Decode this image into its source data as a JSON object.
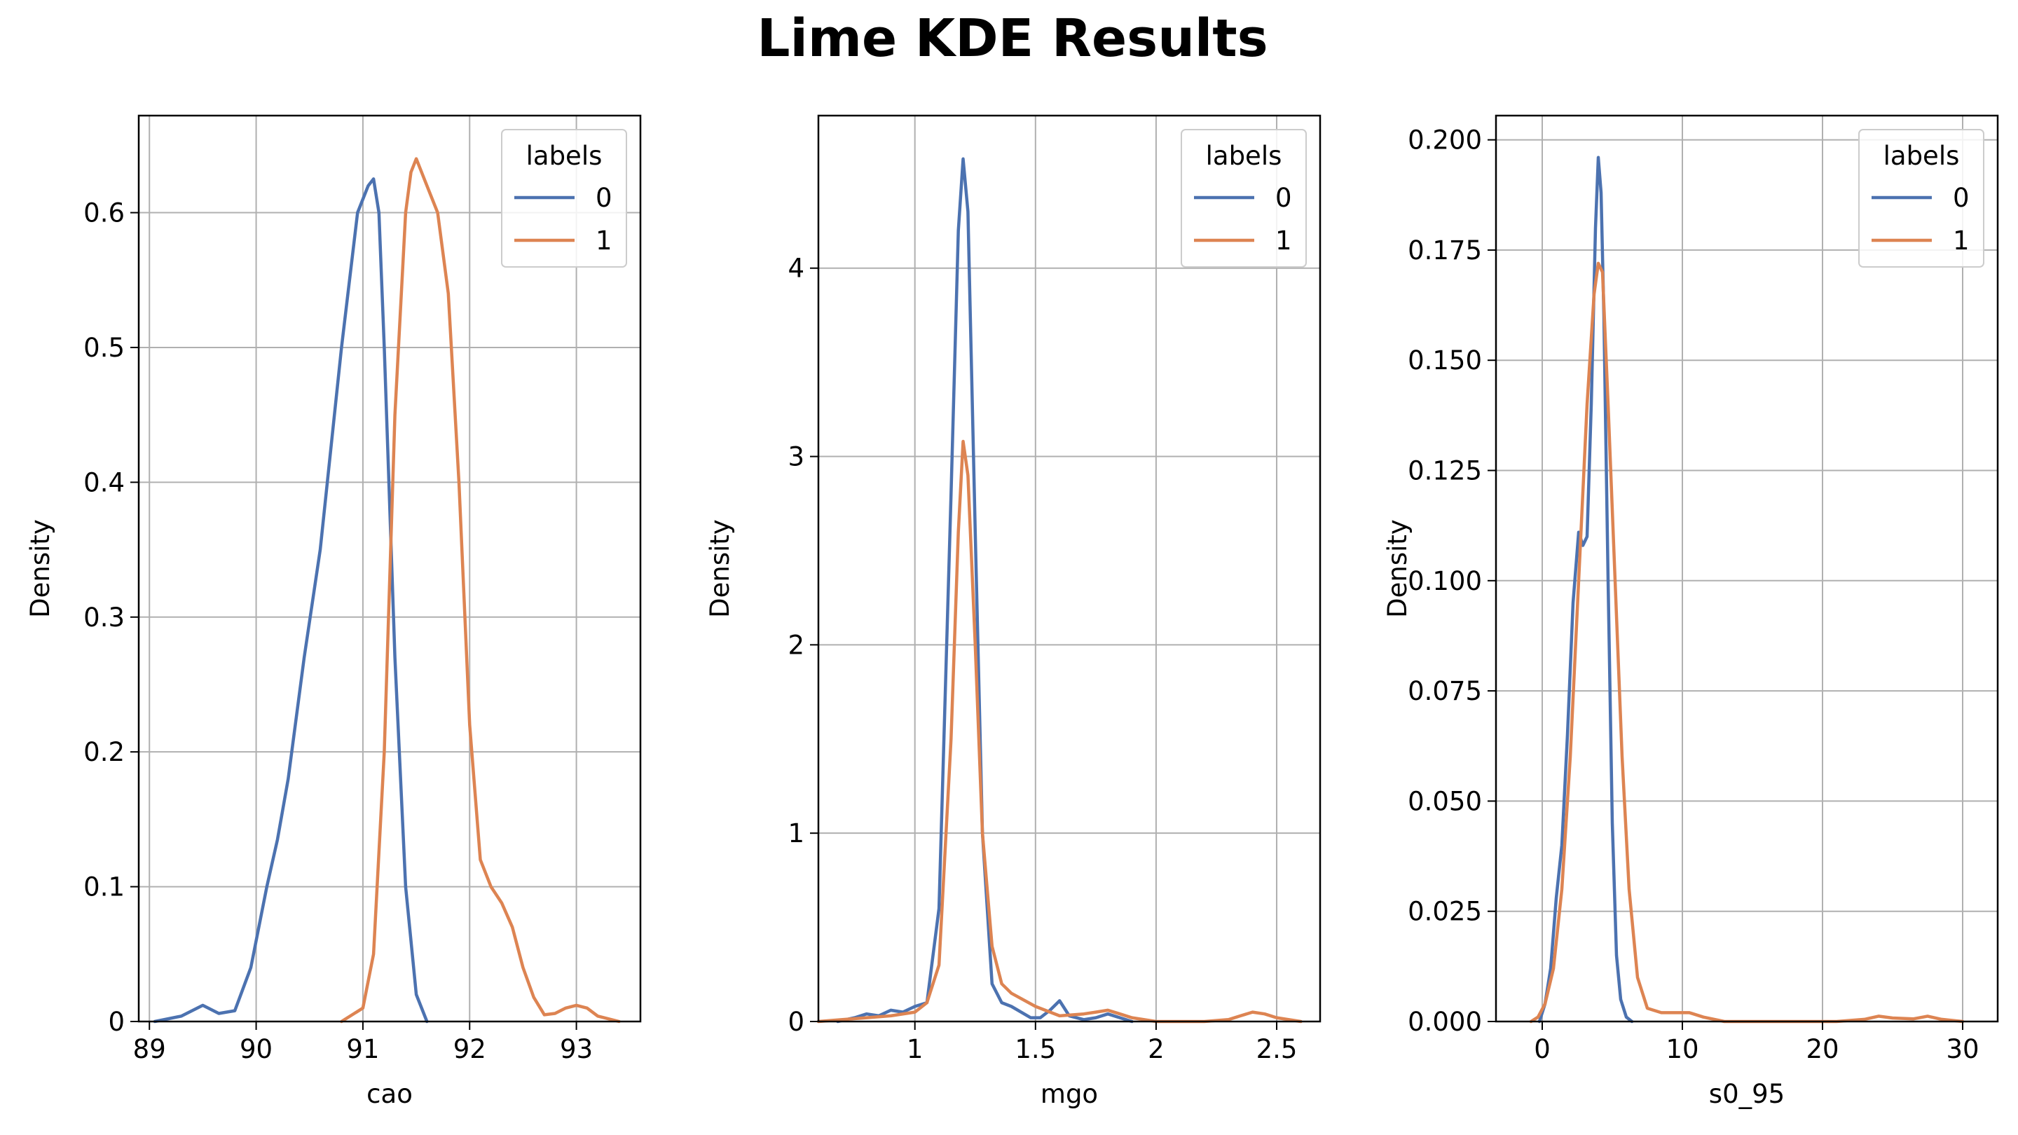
{
  "title": "Lime KDE Results",
  "colors": {
    "series_0": "#4c72b0",
    "series_1": "#dd8452",
    "grid": "#b0b0b0"
  },
  "chart_data": [
    {
      "type": "line",
      "xlabel": "cao",
      "ylabel": "Density",
      "xlim": [
        88.9,
        93.6
      ],
      "ylim": [
        0,
        0.672
      ],
      "xticks": [
        89,
        90,
        91,
        92,
        93
      ],
      "yticks": [
        0.0,
        0.1,
        0.2,
        0.3,
        0.4,
        0.5,
        0.6
      ],
      "grid": true,
      "legend": {
        "title": "labels",
        "placement": "top-right",
        "entries": [
          "0",
          "1"
        ]
      },
      "series": [
        {
          "name": "0",
          "x": [
            89.05,
            89.3,
            89.5,
            89.65,
            89.8,
            89.95,
            90.1,
            90.2,
            90.3,
            90.45,
            90.6,
            90.8,
            90.95,
            91.05,
            91.1,
            91.15,
            91.2,
            91.3,
            91.4,
            91.5,
            91.6
          ],
          "y": [
            0.0,
            0.004,
            0.012,
            0.006,
            0.008,
            0.04,
            0.1,
            0.135,
            0.18,
            0.27,
            0.35,
            0.5,
            0.6,
            0.62,
            0.625,
            0.6,
            0.5,
            0.27,
            0.1,
            0.02,
            0.0
          ]
        },
        {
          "name": "1",
          "x": [
            90.8,
            91.0,
            91.1,
            91.2,
            91.3,
            91.4,
            91.45,
            91.5,
            91.6,
            91.7,
            91.8,
            91.9,
            92.0,
            92.1,
            92.2,
            92.3,
            92.4,
            92.5,
            92.6,
            92.7,
            92.8,
            92.9,
            93.0,
            93.1,
            93.2,
            93.4
          ],
          "y": [
            0.0,
            0.01,
            0.05,
            0.2,
            0.45,
            0.6,
            0.63,
            0.64,
            0.62,
            0.6,
            0.54,
            0.4,
            0.22,
            0.12,
            0.1,
            0.088,
            0.07,
            0.04,
            0.018,
            0.005,
            0.006,
            0.01,
            0.012,
            0.01,
            0.004,
            0.0
          ]
        }
      ]
    },
    {
      "type": "line",
      "xlabel": "mgo",
      "ylabel": "Density",
      "xlim": [
        0.6,
        2.68
      ],
      "ylim": [
        0,
        4.81
      ],
      "xticks": [
        1.0,
        1.5,
        2.0,
        2.5
      ],
      "yticks": [
        0,
        1,
        2,
        3,
        4
      ],
      "grid": true,
      "legend": {
        "title": "labels",
        "placement": "top-right",
        "entries": [
          "0",
          "1"
        ]
      },
      "series": [
        {
          "name": "0",
          "x": [
            0.68,
            0.75,
            0.8,
            0.85,
            0.9,
            0.95,
            1.0,
            1.05,
            1.1,
            1.15,
            1.18,
            1.2,
            1.22,
            1.25,
            1.28,
            1.32,
            1.36,
            1.4,
            1.44,
            1.48,
            1.52,
            1.56,
            1.6,
            1.64,
            1.7,
            1.75,
            1.8,
            1.85,
            1.9
          ],
          "y": [
            0.0,
            0.02,
            0.04,
            0.03,
            0.06,
            0.05,
            0.08,
            0.1,
            0.6,
            2.8,
            4.2,
            4.58,
            4.3,
            2.6,
            1.0,
            0.2,
            0.1,
            0.08,
            0.05,
            0.02,
            0.02,
            0.06,
            0.11,
            0.03,
            0.01,
            0.02,
            0.04,
            0.02,
            0.0
          ]
        },
        {
          "name": "1",
          "x": [
            0.6,
            0.7,
            0.8,
            0.9,
            1.0,
            1.05,
            1.1,
            1.15,
            1.18,
            1.2,
            1.22,
            1.25,
            1.28,
            1.32,
            1.36,
            1.4,
            1.5,
            1.6,
            1.7,
            1.75,
            1.8,
            1.85,
            1.9,
            2.0,
            2.1,
            2.2,
            2.3,
            2.35,
            2.4,
            2.45,
            2.5,
            2.6
          ],
          "y": [
            0.0,
            0.01,
            0.02,
            0.03,
            0.05,
            0.1,
            0.3,
            1.5,
            2.6,
            3.08,
            2.9,
            2.0,
            1.0,
            0.4,
            0.2,
            0.15,
            0.08,
            0.03,
            0.04,
            0.05,
            0.06,
            0.04,
            0.02,
            0.0,
            0.0,
            0.0,
            0.01,
            0.03,
            0.05,
            0.04,
            0.02,
            0.0
          ]
        }
      ]
    },
    {
      "type": "line",
      "xlabel": "s0_95",
      "ylabel": "Density",
      "xlim": [
        -3.3,
        32.5
      ],
      "ylim": [
        0,
        0.2055
      ],
      "xticks": [
        0,
        10,
        20,
        30
      ],
      "yticks": [
        "0.000",
        "0.025",
        "0.050",
        "0.075",
        "0.100",
        "0.125",
        "0.150",
        "0.175",
        "0.200"
      ],
      "grid": true,
      "legend": {
        "title": "labels",
        "placement": "top-right",
        "entries": [
          "0",
          "1"
        ]
      },
      "series": [
        {
          "name": "0",
          "x": [
            -0.2,
            0.2,
            0.6,
            1.0,
            1.4,
            1.8,
            2.2,
            2.6,
            2.9,
            3.2,
            3.5,
            3.8,
            4.0,
            4.2,
            4.4,
            4.7,
            5.0,
            5.3,
            5.6,
            6.0,
            6.4
          ],
          "y": [
            0.0,
            0.004,
            0.012,
            0.028,
            0.04,
            0.065,
            0.095,
            0.111,
            0.108,
            0.11,
            0.14,
            0.18,
            0.196,
            0.188,
            0.16,
            0.1,
            0.045,
            0.015,
            0.005,
            0.001,
            0.0
          ]
        },
        {
          "name": "1",
          "x": [
            -0.8,
            -0.3,
            0.2,
            0.8,
            1.4,
            2.0,
            2.6,
            3.2,
            3.7,
            4.0,
            4.3,
            4.7,
            5.2,
            5.7,
            6.2,
            6.8,
            7.5,
            8.5,
            9.5,
            10.5,
            11.5,
            13.0,
            15.0,
            18.0,
            21.0,
            23.0,
            24.0,
            25.0,
            26.5,
            27.5,
            28.5,
            30.0
          ],
          "y": [
            0.0,
            0.001,
            0.004,
            0.012,
            0.03,
            0.06,
            0.1,
            0.14,
            0.165,
            0.172,
            0.17,
            0.14,
            0.1,
            0.06,
            0.03,
            0.01,
            0.003,
            0.002,
            0.002,
            0.002,
            0.001,
            0.0,
            0.0,
            0.0,
            0.0,
            0.0005,
            0.0012,
            0.0008,
            0.0006,
            0.0012,
            0.0005,
            0.0
          ]
        }
      ]
    }
  ]
}
